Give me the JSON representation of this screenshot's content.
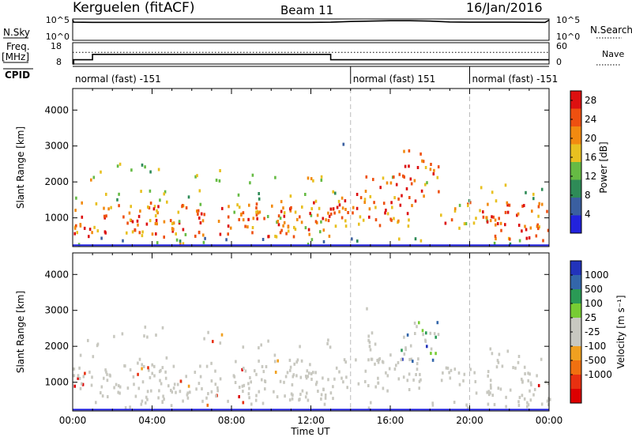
{
  "header": {
    "station": "Kerguelen (fitACF)",
    "beam": "Beam 11",
    "date": "16/Jan/2016"
  },
  "panel_labels": {
    "nsky": "N.Sky",
    "nsearch": "N.Search",
    "freq_line1": "Freq.",
    "freq_line2": "[MHz]",
    "nave": "Nave",
    "cpid": "CPID"
  },
  "cpid_segments": [
    {
      "label": "normal (fast) -151",
      "start_hour": 0,
      "end_hour": 14
    },
    {
      "label": "normal (fast) 151",
      "start_hour": 14,
      "end_hour": 20
    },
    {
      "label": "normal (fast) -151",
      "start_hour": 20,
      "end_hour": 24
    }
  ],
  "colors": {
    "power_scale": [
      "#2222dd",
      "#3a5fa0",
      "#2e8b57",
      "#66bb44",
      "#e8c020",
      "#f28a10",
      "#ee5010",
      "#dd1010"
    ],
    "velocity_scale": [
      "#2233bb",
      "#3366aa",
      "#2a9a55",
      "#77cc33",
      "#c8c8c0",
      "#c8c8c0",
      "#f0a020",
      "#f07010",
      "#e83010",
      "#dd0000"
    ],
    "axis": "#000000",
    "dashed": "#bbbbbb"
  },
  "chart_data": [
    {
      "type": "line",
      "title": "N.Sky / N.Search",
      "x_label": "Time UT",
      "ylim": [
        0,
        100000
      ],
      "yticks_left": [
        "10^5",
        "10^0"
      ],
      "yticks_right": [
        "10^5",
        "10^0"
      ],
      "series": [
        {
          "name": "N.Sky",
          "x": [
            0,
            0.05,
            1,
            4,
            8,
            12,
            13,
            14,
            15,
            16,
            17,
            18,
            19,
            20,
            22,
            23.8,
            24
          ],
          "y_frac": [
            0.95,
            0.85,
            0.84,
            0.84,
            0.84,
            0.84,
            0.85,
            0.88,
            0.9,
            0.92,
            0.92,
            0.9,
            0.86,
            0.85,
            0.85,
            0.84,
            0.95
          ]
        }
      ]
    },
    {
      "type": "line",
      "title": "Freq / Nave",
      "yticks_left": [
        "18",
        "8"
      ],
      "yticks_right": [
        "60",
        "0"
      ],
      "series": [
        {
          "name": "Freq.",
          "x": [
            0,
            0.05,
            0.05,
            1.0,
            1.0,
            13.0,
            13.0,
            24
          ],
          "y": [
            8,
            8,
            10,
            10,
            12.5,
            12.5,
            10,
            10
          ]
        },
        {
          "name": "Nave",
          "x": [
            0,
            24
          ],
          "y": [
            13.5,
            13.5
          ]
        }
      ]
    },
    {
      "type": "heatmap",
      "title": "Power",
      "ylabel": "Slant Range [km]",
      "xlim": [
        0,
        24
      ],
      "ylim": [
        200,
        4600
      ],
      "yticks": [
        1000,
        2000,
        3000,
        4000
      ],
      "colorbar_label": "Power [dB]",
      "colorbar_ticks": [
        4,
        8,
        12,
        16,
        20,
        24,
        28
      ],
      "clim": [
        0,
        30
      ]
    },
    {
      "type": "heatmap",
      "title": "Velocity",
      "ylabel": "Slant Range [km]",
      "xlabel": "Time UT",
      "xlim": [
        0,
        24
      ],
      "ylim": [
        200,
        4600
      ],
      "yticks": [
        1000,
        2000,
        3000,
        4000
      ],
      "xticks": [
        "00:00",
        "04:00",
        "08:00",
        "12:00",
        "16:00",
        "20:00",
        "00:00"
      ],
      "colorbar_label": "Velocity [m s⁻¹]",
      "colorbar_ticks": [
        "1000",
        "500",
        "100",
        "25",
        "-25",
        "-100",
        "-500",
        "-1000"
      ]
    }
  ]
}
